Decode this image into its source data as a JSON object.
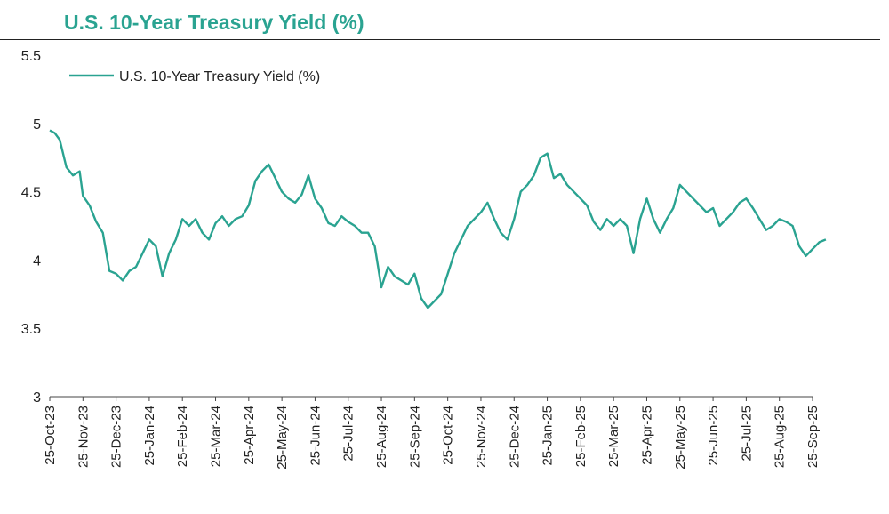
{
  "chart_data": {
    "type": "line",
    "title": "U.S. 10-Year Treasury Yield (%)",
    "xlabel": "",
    "ylabel": "",
    "ylim": [
      3,
      5.5
    ],
    "yticks": [
      "3",
      "3.5",
      "4",
      "4.5",
      "5",
      "5.5"
    ],
    "grid": false,
    "legend": "top-left",
    "color": "#2aa391",
    "x_ticks": [
      "25-Oct-23",
      "25-Nov-23",
      "25-Dec-23",
      "25-Jan-24",
      "25-Feb-24",
      "25-Mar-24",
      "25-Apr-24",
      "25-May-24",
      "25-Jun-24",
      "25-Jul-24",
      "25-Aug-24",
      "25-Sep-24",
      "25-Oct-24",
      "25-Nov-24",
      "25-Dec-24",
      "25-Jan-25",
      "25-Feb-25",
      "25-Mar-25",
      "25-Apr-25",
      "25-May-25",
      "25-Jun-25",
      "25-Jul-25",
      "25-Aug-25",
      "25-Sep-25"
    ],
    "series": [
      {
        "name": "U.S. 10-Year Treasury Yield (%)",
        "points": [
          [
            0.0,
            4.95
          ],
          [
            0.15,
            4.93
          ],
          [
            0.3,
            4.88
          ],
          [
            0.5,
            4.68
          ],
          [
            0.7,
            4.62
          ],
          [
            0.9,
            4.65
          ],
          [
            1.0,
            4.47
          ],
          [
            1.2,
            4.4
          ],
          [
            1.4,
            4.28
          ],
          [
            1.6,
            4.2
          ],
          [
            1.8,
            3.92
          ],
          [
            2.0,
            3.9
          ],
          [
            2.2,
            3.85
          ],
          [
            2.4,
            3.92
          ],
          [
            2.6,
            3.95
          ],
          [
            2.8,
            4.05
          ],
          [
            3.0,
            4.15
          ],
          [
            3.2,
            4.1
          ],
          [
            3.4,
            3.88
          ],
          [
            3.6,
            4.05
          ],
          [
            3.8,
            4.15
          ],
          [
            4.0,
            4.3
          ],
          [
            4.2,
            4.25
          ],
          [
            4.4,
            4.3
          ],
          [
            4.6,
            4.2
          ],
          [
            4.8,
            4.15
          ],
          [
            5.0,
            4.27
          ],
          [
            5.2,
            4.32
          ],
          [
            5.4,
            4.25
          ],
          [
            5.6,
            4.3
          ],
          [
            5.8,
            4.32
          ],
          [
            6.0,
            4.4
          ],
          [
            6.2,
            4.58
          ],
          [
            6.4,
            4.65
          ],
          [
            6.6,
            4.7
          ],
          [
            6.8,
            4.6
          ],
          [
            7.0,
            4.5
          ],
          [
            7.2,
            4.45
          ],
          [
            7.4,
            4.42
          ],
          [
            7.6,
            4.48
          ],
          [
            7.8,
            4.62
          ],
          [
            8.0,
            4.45
          ],
          [
            8.2,
            4.38
          ],
          [
            8.4,
            4.27
          ],
          [
            8.6,
            4.25
          ],
          [
            8.8,
            4.32
          ],
          [
            9.0,
            4.28
          ],
          [
            9.2,
            4.25
          ],
          [
            9.4,
            4.2
          ],
          [
            9.6,
            4.2
          ],
          [
            9.8,
            4.1
          ],
          [
            10.0,
            3.8
          ],
          [
            10.2,
            3.95
          ],
          [
            10.4,
            3.88
          ],
          [
            10.6,
            3.85
          ],
          [
            10.8,
            3.82
          ],
          [
            11.0,
            3.9
          ],
          [
            11.2,
            3.72
          ],
          [
            11.4,
            3.65
          ],
          [
            11.6,
            3.7
          ],
          [
            11.8,
            3.75
          ],
          [
            12.0,
            3.9
          ],
          [
            12.2,
            4.05
          ],
          [
            12.4,
            4.15
          ],
          [
            12.6,
            4.25
          ],
          [
            12.8,
            4.3
          ],
          [
            13.0,
            4.35
          ],
          [
            13.2,
            4.42
          ],
          [
            13.4,
            4.3
          ],
          [
            13.6,
            4.2
          ],
          [
            13.8,
            4.15
          ],
          [
            14.0,
            4.3
          ],
          [
            14.2,
            4.5
          ],
          [
            14.4,
            4.55
          ],
          [
            14.6,
            4.62
          ],
          [
            14.8,
            4.75
          ],
          [
            15.0,
            4.78
          ],
          [
            15.2,
            4.6
          ],
          [
            15.4,
            4.63
          ],
          [
            15.6,
            4.55
          ],
          [
            15.8,
            4.5
          ],
          [
            16.0,
            4.45
          ],
          [
            16.2,
            4.4
          ],
          [
            16.4,
            4.28
          ],
          [
            16.6,
            4.22
          ],
          [
            16.8,
            4.3
          ],
          [
            17.0,
            4.25
          ],
          [
            17.2,
            4.3
          ],
          [
            17.4,
            4.25
          ],
          [
            17.6,
            4.05
          ],
          [
            17.8,
            4.3
          ],
          [
            18.0,
            4.45
          ],
          [
            18.2,
            4.3
          ],
          [
            18.4,
            4.2
          ],
          [
            18.6,
            4.3
          ],
          [
            18.8,
            4.38
          ],
          [
            19.0,
            4.55
          ],
          [
            19.2,
            4.5
          ],
          [
            19.4,
            4.45
          ],
          [
            19.6,
            4.4
          ],
          [
            19.8,
            4.35
          ],
          [
            20.0,
            4.38
          ],
          [
            20.2,
            4.25
          ],
          [
            20.4,
            4.3
          ],
          [
            20.6,
            4.35
          ],
          [
            20.8,
            4.42
          ],
          [
            21.0,
            4.45
          ],
          [
            21.2,
            4.38
          ],
          [
            21.4,
            4.3
          ],
          [
            21.6,
            4.22
          ],
          [
            21.8,
            4.25
          ],
          [
            22.0,
            4.3
          ],
          [
            22.2,
            4.28
          ],
          [
            22.4,
            4.25
          ],
          [
            22.6,
            4.1
          ],
          [
            22.8,
            4.03
          ],
          [
            23.0,
            4.08
          ],
          [
            23.2,
            4.13
          ],
          [
            23.4,
            4.15
          ]
        ]
      }
    ]
  }
}
